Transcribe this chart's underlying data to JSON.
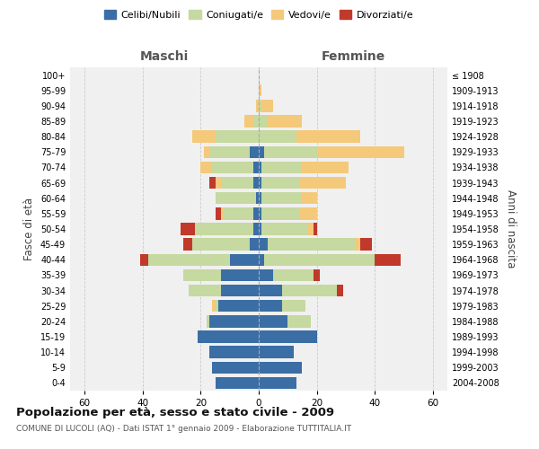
{
  "age_groups": [
    "0-4",
    "5-9",
    "10-14",
    "15-19",
    "20-24",
    "25-29",
    "30-34",
    "35-39",
    "40-44",
    "45-49",
    "50-54",
    "55-59",
    "60-64",
    "65-69",
    "70-74",
    "75-79",
    "80-84",
    "85-89",
    "90-94",
    "95-99",
    "100+"
  ],
  "birth_years": [
    "2004-2008",
    "1999-2003",
    "1994-1998",
    "1989-1993",
    "1984-1988",
    "1979-1983",
    "1974-1978",
    "1969-1973",
    "1964-1968",
    "1959-1963",
    "1954-1958",
    "1949-1953",
    "1944-1948",
    "1939-1943",
    "1934-1938",
    "1929-1933",
    "1924-1928",
    "1919-1923",
    "1914-1918",
    "1909-1913",
    "≤ 1908"
  ],
  "maschi": {
    "celibi": [
      15,
      16,
      17,
      21,
      17,
      14,
      13,
      13,
      10,
      3,
      2,
      2,
      1,
      2,
      2,
      3,
      0,
      0,
      0,
      0,
      0
    ],
    "coniugati": [
      0,
      0,
      0,
      0,
      1,
      1,
      11,
      13,
      28,
      20,
      20,
      10,
      14,
      11,
      14,
      14,
      15,
      2,
      0,
      0,
      0
    ],
    "vedovi": [
      0,
      0,
      0,
      0,
      0,
      1,
      0,
      0,
      0,
      0,
      0,
      1,
      0,
      2,
      4,
      2,
      8,
      3,
      1,
      0,
      0
    ],
    "divorziati": [
      0,
      0,
      0,
      0,
      0,
      0,
      0,
      0,
      3,
      3,
      5,
      2,
      0,
      2,
      0,
      0,
      0,
      0,
      0,
      0,
      0
    ]
  },
  "femmine": {
    "nubili": [
      13,
      15,
      12,
      20,
      10,
      8,
      8,
      5,
      2,
      3,
      1,
      1,
      1,
      1,
      1,
      2,
      0,
      0,
      0,
      0,
      0
    ],
    "coniugate": [
      0,
      0,
      0,
      0,
      8,
      8,
      19,
      14,
      38,
      30,
      16,
      13,
      14,
      13,
      14,
      18,
      13,
      3,
      1,
      0,
      0
    ],
    "vedove": [
      0,
      0,
      0,
      0,
      0,
      0,
      0,
      0,
      0,
      2,
      2,
      6,
      5,
      16,
      16,
      30,
      22,
      12,
      4,
      1,
      0
    ],
    "divorziate": [
      0,
      0,
      0,
      0,
      0,
      0,
      2,
      2,
      9,
      4,
      1,
      0,
      0,
      0,
      0,
      0,
      0,
      0,
      0,
      0,
      0
    ]
  },
  "colors": {
    "celibi_nubili": "#3a6ea5",
    "coniugati": "#c5d9a0",
    "vedovi": "#f5c97a",
    "divorziati": "#c0392b"
  },
  "xlim": 65,
  "title": "Popolazione per età, sesso e stato civile - 2009",
  "subtitle": "COMUNE DI LUCOLI (AQ) - Dati ISTAT 1° gennaio 2009 - Elaborazione TUTTITALIA.IT",
  "ylabel_left": "Fasce di età",
  "ylabel_right": "Anni di nascita",
  "xlabel_left": "Maschi",
  "xlabel_right": "Femmine",
  "background_color": "#ffffff",
  "plot_bg": "#f0f0f0",
  "grid_color": "#cccccc"
}
